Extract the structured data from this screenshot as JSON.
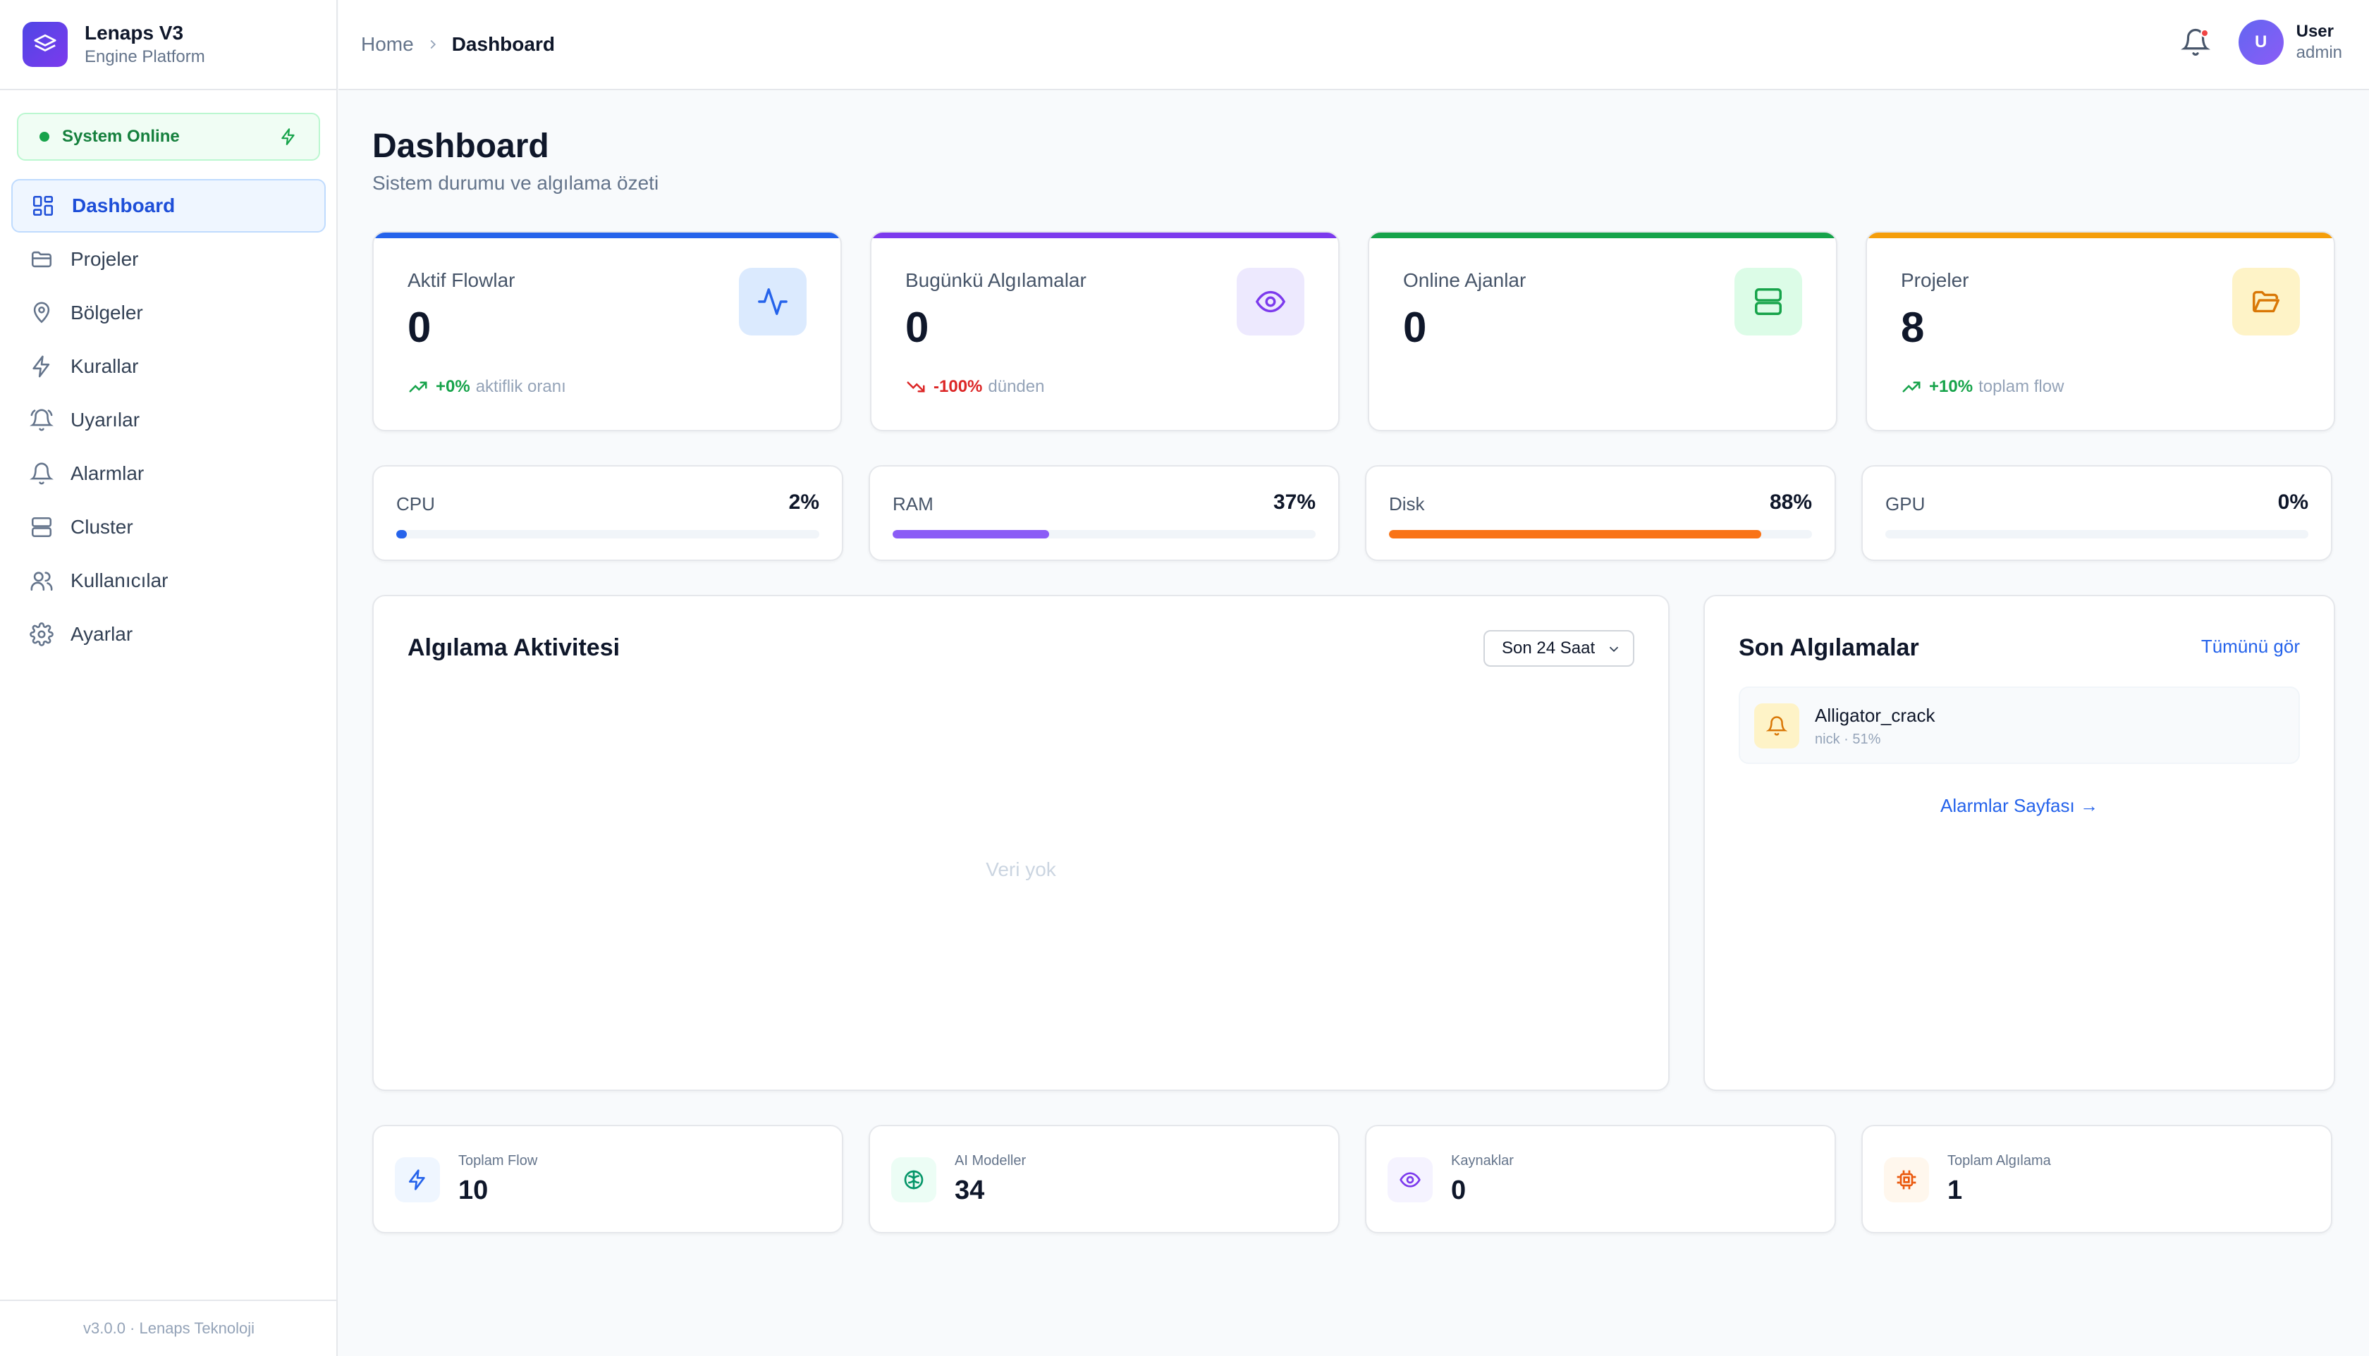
{
  "brand": {
    "title": "Lenaps V3",
    "subtitle": "Engine Platform"
  },
  "system_status": {
    "label": "System Online",
    "color": "#16a34a"
  },
  "sidebar": {
    "items": [
      {
        "label": "Dashboard",
        "icon": "grid-icon",
        "active": true
      },
      {
        "label": "Projeler",
        "icon": "folder-icon"
      },
      {
        "label": "Bölgeler",
        "icon": "map-pin-icon"
      },
      {
        "label": "Kurallar",
        "icon": "bolt-icon"
      },
      {
        "label": "Uyarılar",
        "icon": "bell-ring-icon"
      },
      {
        "label": "Alarmlar",
        "icon": "bell-icon"
      },
      {
        "label": "Cluster",
        "icon": "server-icon"
      },
      {
        "label": "Kullanıcılar",
        "icon": "users-icon"
      },
      {
        "label": "Ayarlar",
        "icon": "gear-icon"
      }
    ],
    "footer": "v3.0.0 · Lenaps Teknoloji"
  },
  "header": {
    "breadcrumb": {
      "home": "Home",
      "current": "Dashboard"
    },
    "user": {
      "initial": "U",
      "name": "User",
      "role": "admin"
    },
    "notification_dot": true
  },
  "page": {
    "title": "Dashboard",
    "subtitle": "Sistem durumu ve algılama özeti"
  },
  "kpis": [
    {
      "label": "Aktif Flowlar",
      "value": "0",
      "accent": "#2563eb",
      "icon": "activity-icon",
      "trend": {
        "value": "+0%",
        "text": "aktiflik oranı",
        "direction": "up"
      }
    },
    {
      "label": "Bugünkü Algılamalar",
      "value": "0",
      "accent": "#7c3aed",
      "icon": "eye-icon",
      "trend": {
        "value": "-100%",
        "text": "dünden",
        "direction": "down"
      }
    },
    {
      "label": "Online Ajanlar",
      "value": "0",
      "accent": "#16a34a",
      "icon": "server-icon"
    },
    {
      "label": "Projeler",
      "value": "8",
      "accent": "#f59e0b",
      "icon": "folder-open-icon",
      "trend": {
        "value": "+10%",
        "text": "toplam flow",
        "direction": "up"
      }
    }
  ],
  "resources": [
    {
      "label": "CPU",
      "value": "2%",
      "percent": 2,
      "color": "#2563eb"
    },
    {
      "label": "RAM",
      "value": "37%",
      "percent": 37,
      "color": "#8b5cf6"
    },
    {
      "label": "Disk",
      "value": "88%",
      "percent": 88,
      "color": "#f97316"
    },
    {
      "label": "GPU",
      "value": "0%",
      "percent": 0,
      "color": "#16a34a"
    }
  ],
  "activity": {
    "title": "Algılama Aktivitesi",
    "range": "Son 24 Saat",
    "empty": "Veri yok"
  },
  "recent": {
    "title": "Son Algılamalar",
    "see_all": "Tümünü gör",
    "items": [
      {
        "name": "Alligator_crack",
        "meta": "nick · 51%"
      }
    ],
    "alarm_link": "Alarmlar Sayfası →"
  },
  "stats": [
    {
      "label": "Toplam Flow",
      "value": "10",
      "icon": "bolt-icon",
      "color": "#2563eb",
      "bg": "#eff6ff"
    },
    {
      "label": "AI Modeller",
      "value": "34",
      "icon": "brain-icon",
      "color": "#059669",
      "bg": "#ecfdf5"
    },
    {
      "label": "Kaynaklar",
      "value": "0",
      "icon": "eye-icon",
      "color": "#7c3aed",
      "bg": "#f5f3ff"
    },
    {
      "label": "Toplam Algılama",
      "value": "1",
      "icon": "cpu-icon",
      "color": "#ea580c",
      "bg": "#fff7ed"
    }
  ]
}
